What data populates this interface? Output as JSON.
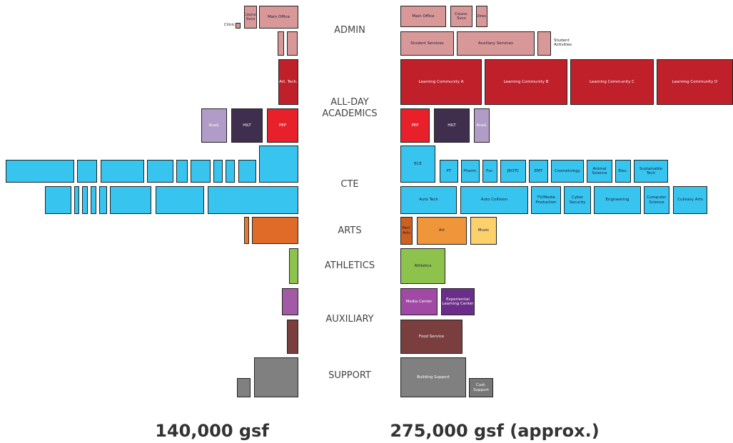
{
  "categories": [
    "ADMIN",
    "ALL-DAY ACADEMICS",
    "CTE",
    "ARTS",
    "ATHLETICS",
    "AUXILIARY",
    "SUPPORT"
  ],
  "left_spaces": [
    "Clinic",
    "Couns. Svcs",
    "Main Office",
    "Art. Tech.",
    "Acad.",
    "HILT",
    "PEP"
  ],
  "right_spaces": [
    "Main Office",
    "Couns. Svcs",
    "Direc.",
    "Student Services",
    "Auxiliary Services",
    "Student Activities",
    "Learning Community A",
    "Learning Community B",
    "Learning Community C",
    "Learning Community D",
    "PEP",
    "HILT",
    "Acad.",
    "ECE",
    "PT",
    "Pharm.",
    "Fsc.",
    "JROTC",
    "EMT",
    "Cosmetology",
    "Animal Science",
    "Elec.",
    "Sustainable Tech",
    "Auto Tech",
    "Auto Collision",
    "TV/Media Production",
    "Cyber Security",
    "Engineering",
    "Computer Science",
    "Culinary Arts",
    "Perf. Arts",
    "Art",
    "Music",
    "Athletics",
    "Media Center",
    "Experiential Learning Center",
    "Food Service",
    "Building Support",
    "Cust. Support"
  ],
  "totals": [
    "140,000 gsf",
    "275,000 gsf (approx.)"
  ]
}
